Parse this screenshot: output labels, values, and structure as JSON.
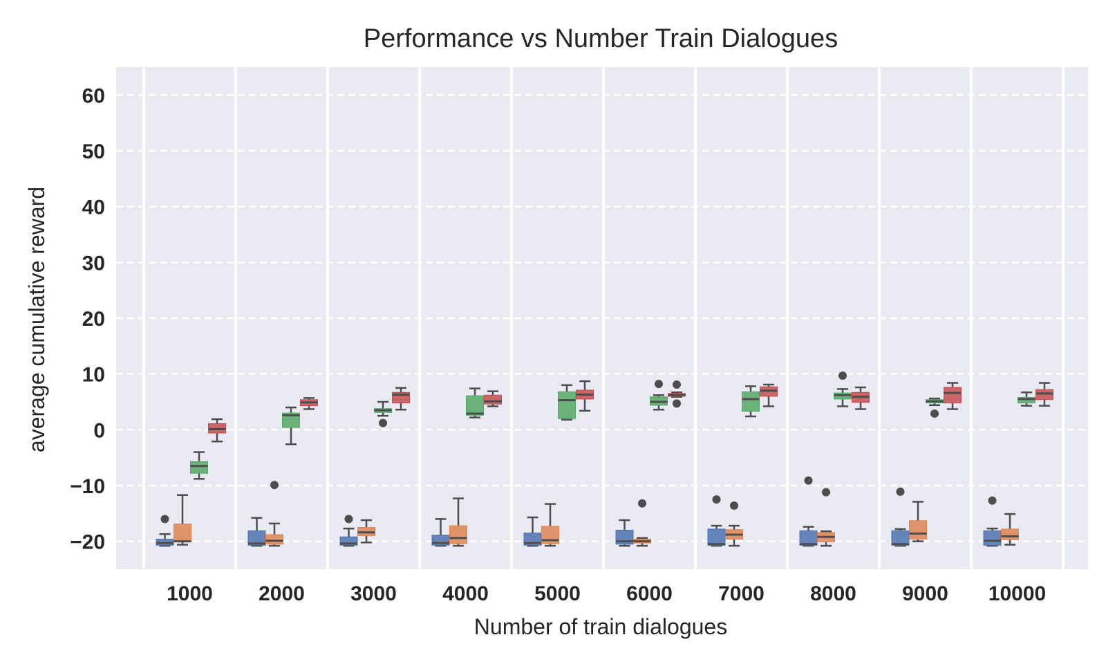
{
  "chart_data": {
    "type": "box",
    "title": "Performance vs Number Train Dialogues",
    "xlabel": "Number of train dialogues",
    "ylabel": "average cumulative reward",
    "categories": [
      "1000",
      "2000",
      "3000",
      "4000",
      "5000",
      "6000",
      "7000",
      "8000",
      "9000",
      "10000"
    ],
    "y_ticks": [
      60,
      50,
      40,
      30,
      20,
      10,
      0,
      -10,
      -20
    ],
    "y_tick_labels": [
      "60",
      "50",
      "40",
      "30",
      "20",
      "10",
      "0",
      "−10",
      "−20"
    ],
    "ylim": [
      -25,
      65
    ],
    "grid": "horizontal dashed",
    "background": "#eaeaf2",
    "series": [
      {
        "color": "#4c72b0",
        "boxes": [
          {
            "wlo": -20.8,
            "q1": -20.7,
            "med": -20.3,
            "q3": -19.6,
            "whi": -18.7,
            "outliers": [
              -16
            ]
          },
          {
            "wlo": -20.8,
            "q1": -20.7,
            "med": -20.4,
            "q3": -18.1,
            "whi": -15.8,
            "outliers": []
          },
          {
            "wlo": -20.8,
            "q1": -20.7,
            "med": -20.4,
            "q3": -19.2,
            "whi": -17.7,
            "outliers": [
              -16
            ]
          },
          {
            "wlo": -20.8,
            "q1": -20.7,
            "med": -20.3,
            "q3": -18.9,
            "whi": -16,
            "outliers": []
          },
          {
            "wlo": -20.8,
            "q1": -20.7,
            "med": -20.3,
            "q3": -18.5,
            "whi": -15.7,
            "outliers": []
          },
          {
            "wlo": -20.8,
            "q1": -20.5,
            "med": -20,
            "q3": -18,
            "whi": -16.2,
            "outliers": []
          },
          {
            "wlo": -20.8,
            "q1": -20.7,
            "med": -20.5,
            "q3": -17.8,
            "whi": -17.2,
            "outliers": [
              -12.5
            ]
          },
          {
            "wlo": -20.8,
            "q1": -20.7,
            "med": -20.5,
            "q3": -18.1,
            "whi": -17.4,
            "outliers": [
              -9.1
            ]
          },
          {
            "wlo": -20.8,
            "q1": -20.7,
            "med": -20.5,
            "q3": -18.1,
            "whi": -17.8,
            "outliers": [
              -11.1
            ]
          },
          {
            "wlo": -20.8,
            "q1": -20.7,
            "med": -19.9,
            "q3": -18.1,
            "whi": -17.7,
            "outliers": [
              -12.7
            ]
          }
        ]
      },
      {
        "color": "#dd8452",
        "boxes": [
          {
            "wlo": -20.6,
            "q1": -20.1,
            "med": -20,
            "q3": -16.9,
            "whi": -11.7,
            "outliers": []
          },
          {
            "wlo": -20.8,
            "q1": -20.5,
            "med": -19.9,
            "q3": -18.8,
            "whi": -16.8,
            "outliers": [
              -9.9
            ]
          },
          {
            "wlo": -20.2,
            "q1": -19,
            "med": -18.4,
            "q3": -17.5,
            "whi": -16.2,
            "outliers": []
          },
          {
            "wlo": -20.8,
            "q1": -20.4,
            "med": -19.4,
            "q3": -17.2,
            "whi": -12.3,
            "outliers": []
          },
          {
            "wlo": -20.8,
            "q1": -20.4,
            "med": -19.8,
            "q3": -17.3,
            "whi": -13.3,
            "outliers": []
          },
          {
            "wlo": -20.8,
            "q1": -20.3,
            "med": -20,
            "q3": -19.6,
            "whi": -19.4,
            "outliers": [
              -13.2
            ]
          },
          {
            "wlo": -20.8,
            "q1": -19.6,
            "med": -18.8,
            "q3": -17.9,
            "whi": -17.2,
            "outliers": [
              -13.6
            ]
          },
          {
            "wlo": -20.8,
            "q1": -20.1,
            "med": -19.2,
            "q3": -18.4,
            "whi": -18.2,
            "outliers": [
              -11.2
            ]
          },
          {
            "wlo": -20,
            "q1": -19.6,
            "med": -18.6,
            "q3": -16.3,
            "whi": -12.9,
            "outliers": []
          },
          {
            "wlo": -20.6,
            "q1": -19.7,
            "med": -19.1,
            "q3": -17.8,
            "whi": -15.1,
            "outliers": []
          }
        ]
      },
      {
        "color": "#55a868",
        "boxes": [
          {
            "wlo": -8.8,
            "q1": -7.8,
            "med": -6.5,
            "q3": -5.7,
            "whi": -4,
            "outliers": []
          },
          {
            "wlo": -2.6,
            "q1": 0.4,
            "med": 2.6,
            "q3": 3,
            "whi": 4,
            "outliers": []
          },
          {
            "wlo": 2.5,
            "q1": 3.1,
            "med": 3.5,
            "q3": 3.8,
            "whi": 5,
            "outliers": [
              1.2
            ]
          },
          {
            "wlo": 2.2,
            "q1": 2.6,
            "med": 2.9,
            "q3": 6.1,
            "whi": 7.4,
            "outliers": []
          },
          {
            "wlo": 1.8,
            "q1": 2,
            "med": 5.3,
            "q3": 6.8,
            "whi": 8,
            "outliers": []
          },
          {
            "wlo": 3.6,
            "q1": 4.4,
            "med": 5,
            "q3": 5.9,
            "whi": 6.2,
            "outliers": [
              8.2
            ]
          },
          {
            "wlo": 2.4,
            "q1": 3.3,
            "med": 5.5,
            "q3": 6.8,
            "whi": 7.8,
            "outliers": []
          },
          {
            "wlo": 4.2,
            "q1": 5.5,
            "med": 6.2,
            "q3": 6.6,
            "whi": 7.3,
            "outliers": [
              9.7
            ]
          },
          {
            "wlo": 4.4,
            "q1": 4.8,
            "med": 5.1,
            "q3": 5.4,
            "whi": 5.6,
            "outliers": [
              2.9
            ]
          },
          {
            "wlo": 4.3,
            "q1": 4.8,
            "med": 5.5,
            "q3": 5.8,
            "whi": 6.7,
            "outliers": []
          }
        ]
      },
      {
        "color": "#c44e52",
        "boxes": [
          {
            "wlo": -2.1,
            "q1": -0.6,
            "med": 0.1,
            "q3": 1.1,
            "whi": 1.9,
            "outliers": []
          },
          {
            "wlo": 3.7,
            "q1": 4.3,
            "med": 4.9,
            "q3": 5.4,
            "whi": 5.7,
            "outliers": []
          },
          {
            "wlo": 3.6,
            "q1": 4.8,
            "med": 6.3,
            "q3": 6.7,
            "whi": 7.5,
            "outliers": []
          },
          {
            "wlo": 4.2,
            "q1": 4.6,
            "med": 5.1,
            "q3": 6.2,
            "whi": 6.9,
            "outliers": []
          },
          {
            "wlo": 3.4,
            "q1": 5.5,
            "med": 6.3,
            "q3": 7.1,
            "whi": 8.7,
            "outliers": []
          },
          {
            "wlo": 5.9,
            "q1": 6,
            "med": 6.2,
            "q3": 6.5,
            "whi": 6.7,
            "outliers": [
              4.7,
              8.1
            ]
          },
          {
            "wlo": 4.2,
            "q1": 6,
            "med": 7,
            "q3": 7.7,
            "whi": 8.1,
            "outliers": []
          },
          {
            "wlo": 3.7,
            "q1": 4.9,
            "med": 5.9,
            "q3": 6.7,
            "whi": 7.6,
            "outliers": []
          },
          {
            "wlo": 3.7,
            "q1": 4.8,
            "med": 6.6,
            "q3": 7.6,
            "whi": 8.4,
            "outliers": []
          },
          {
            "wlo": 4.3,
            "q1": 5.4,
            "med": 6.5,
            "q3": 7.2,
            "whi": 8.4,
            "outliers": []
          }
        ]
      }
    ]
  }
}
